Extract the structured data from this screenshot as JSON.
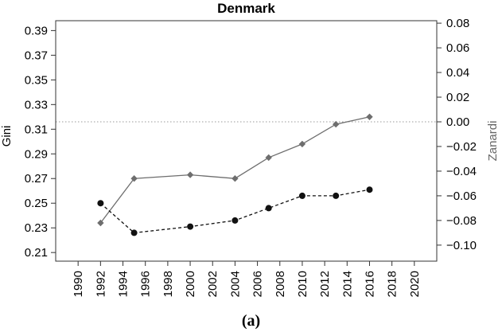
{
  "chart_data": {
    "type": "line",
    "title": "Denmark",
    "ylabel_left": "Gini",
    "ylabel_right": "Zanardi",
    "xlim": [
      1988,
      2022
    ],
    "ylim_left": [
      0.203,
      0.398
    ],
    "ylim_right": [
      -0.113,
      0.082
    ],
    "x_ticks": [
      1990,
      1992,
      1994,
      1996,
      1998,
      2000,
      2002,
      2004,
      2006,
      2008,
      2010,
      2012,
      2014,
      2016,
      2018,
      2020
    ],
    "y_ticks_left": [
      "0.21",
      "0.23",
      "0.25",
      "0.27",
      "0.29",
      "0.31",
      "0.33",
      "0.35",
      "0.37",
      "0.39"
    ],
    "y_ticks_right": [
      "−0.10",
      "−0.08",
      "−0.06",
      "−0.04",
      "−0.02",
      "0.00",
      "0.02",
      "0.04",
      "0.06",
      "0.08"
    ],
    "reference_line": {
      "axis": "right",
      "value": 0.0,
      "style": "dotted"
    },
    "series": [
      {
        "axis": "left",
        "marker": "diamond",
        "line_style": "solid",
        "color": "#6e6e6e",
        "x": [
          1992,
          1995,
          2000,
          2004,
          2007,
          2010,
          2013,
          2016
        ],
        "y": [
          0.234,
          0.27,
          0.273,
          0.27,
          0.287,
          0.298,
          0.314,
          0.32
        ]
      },
      {
        "axis": "right",
        "marker": "circle",
        "line_style": "dashed",
        "color": "#111111",
        "x": [
          1992,
          1995,
          2000,
          2004,
          2007,
          2010,
          2013,
          2016
        ],
        "y": [
          -0.066,
          -0.09,
          -0.085,
          -0.08,
          -0.07,
          -0.06,
          -0.06,
          -0.055
        ]
      }
    ]
  },
  "caption": "(a)"
}
